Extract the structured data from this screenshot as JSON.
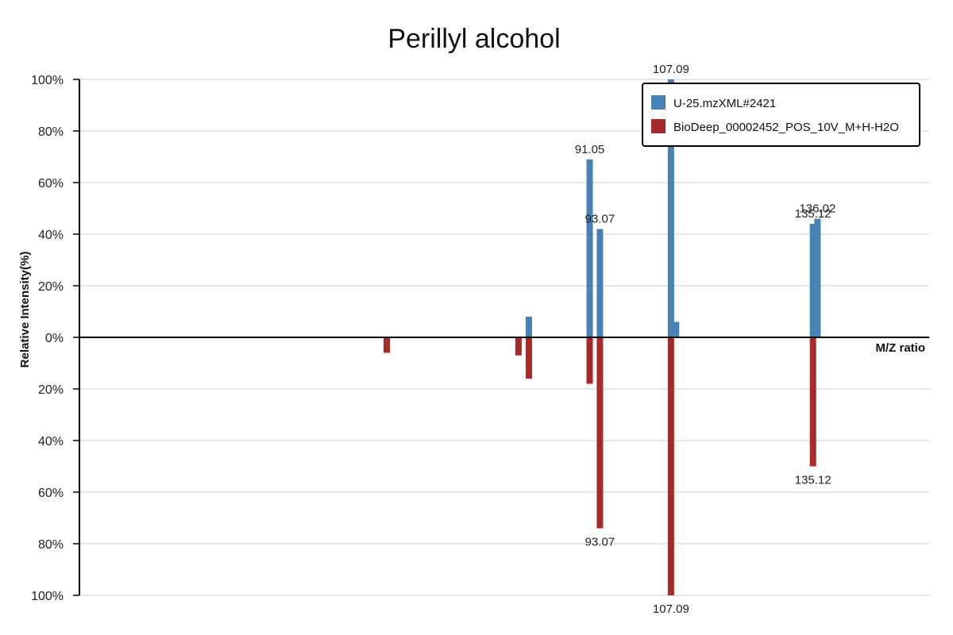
{
  "chart_data": {
    "type": "bar",
    "title": "Perillyl alcohol",
    "xlabel": "M/Z ratio",
    "ylabel": "Relative Intensity(%)",
    "ylim": [
      -100,
      100
    ],
    "y_ticks": [
      "100%",
      "80%",
      "60%",
      "40%",
      "20%",
      "0%",
      "20%",
      "40%",
      "60%",
      "80%",
      "100%"
    ],
    "grid": true,
    "legend_position": "top-right",
    "series": [
      {
        "name": "U-25.mzXML#2421",
        "color": "#4682b4",
        "direction": "up",
        "points": [
          {
            "mz": 79.05,
            "intensity": 8,
            "label": ""
          },
          {
            "mz": 91.05,
            "intensity": 69,
            "label": "91.05"
          },
          {
            "mz": 93.07,
            "intensity": 42,
            "label": "93.07"
          },
          {
            "mz": 107.09,
            "intensity": 100,
            "label": "107.09"
          },
          {
            "mz": 108.1,
            "intensity": 6,
            "label": ""
          },
          {
            "mz": 135.12,
            "intensity": 44,
            "label": "135.12"
          },
          {
            "mz": 136.02,
            "intensity": 46,
            "label": "136.02"
          }
        ]
      },
      {
        "name": "BioDeep_00002452_POS_10V_M+H-H2O",
        "color": "#a52a2a",
        "direction": "down",
        "points": [
          {
            "mz": 51.0,
            "intensity": 6,
            "label": ""
          },
          {
            "mz": 77.0,
            "intensity": 7,
            "label": ""
          },
          {
            "mz": 79.05,
            "intensity": 16,
            "label": ""
          },
          {
            "mz": 91.05,
            "intensity": 18,
            "label": ""
          },
          {
            "mz": 93.07,
            "intensity": 74,
            "label": "93.07"
          },
          {
            "mz": 107.09,
            "intensity": 100,
            "label": "107.09"
          },
          {
            "mz": 135.12,
            "intensity": 50,
            "label": "135.12"
          }
        ]
      }
    ]
  }
}
